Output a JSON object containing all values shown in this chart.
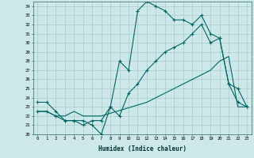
{
  "bg_color": "#cde8e8",
  "grid_color": "#aacccc",
  "line_color": "#006666",
  "xlabel": "Humidex (Indice chaleur)",
  "xlim": [
    -0.5,
    23.5
  ],
  "ylim": [
    20,
    34.5
  ],
  "yticks": [
    20,
    21,
    22,
    23,
    24,
    25,
    26,
    27,
    28,
    29,
    30,
    31,
    32,
    33,
    34
  ],
  "xticks": [
    0,
    1,
    2,
    3,
    4,
    5,
    6,
    7,
    8,
    9,
    10,
    11,
    12,
    13,
    14,
    15,
    16,
    17,
    18,
    19,
    20,
    21,
    22,
    23
  ],
  "line1_x": [
    0,
    1,
    2,
    3,
    4,
    5,
    6,
    7,
    8,
    9,
    10,
    11,
    12,
    13,
    14,
    15,
    16,
    17,
    18,
    19,
    20,
    21,
    22,
    23
  ],
  "line1_y": [
    23.5,
    23.5,
    22.5,
    21.5,
    21.5,
    21.5,
    21.0,
    20.0,
    23.0,
    28.0,
    27.0,
    33.5,
    34.5,
    34.0,
    33.5,
    32.5,
    32.5,
    32.0,
    33.0,
    31.0,
    30.5,
    25.5,
    25.0,
    23.0
  ],
  "line2_x": [
    0,
    1,
    2,
    3,
    4,
    5,
    6,
    7,
    8,
    9,
    10,
    11,
    12,
    13,
    14,
    15,
    16,
    17,
    18,
    19,
    20,
    21,
    22,
    23
  ],
  "line2_y": [
    22.5,
    22.5,
    22.0,
    21.5,
    21.5,
    21.0,
    21.5,
    21.5,
    23.0,
    22.0,
    24.5,
    25.5,
    27.0,
    28.0,
    29.0,
    29.5,
    30.0,
    31.0,
    32.0,
    30.0,
    30.5,
    25.5,
    23.5,
    23.0
  ],
  "line3_x": [
    0,
    1,
    2,
    3,
    4,
    5,
    6,
    7,
    8,
    9,
    10,
    11,
    12,
    13,
    14,
    15,
    16,
    17,
    18,
    19,
    20,
    21,
    22,
    23
  ],
  "line3_y": [
    22.5,
    22.5,
    22.0,
    22.0,
    22.5,
    22.0,
    22.0,
    22.0,
    22.3,
    22.6,
    22.9,
    23.2,
    23.5,
    24.0,
    24.5,
    25.0,
    25.5,
    26.0,
    26.5,
    27.0,
    28.0,
    28.5,
    23.0,
    23.0
  ]
}
